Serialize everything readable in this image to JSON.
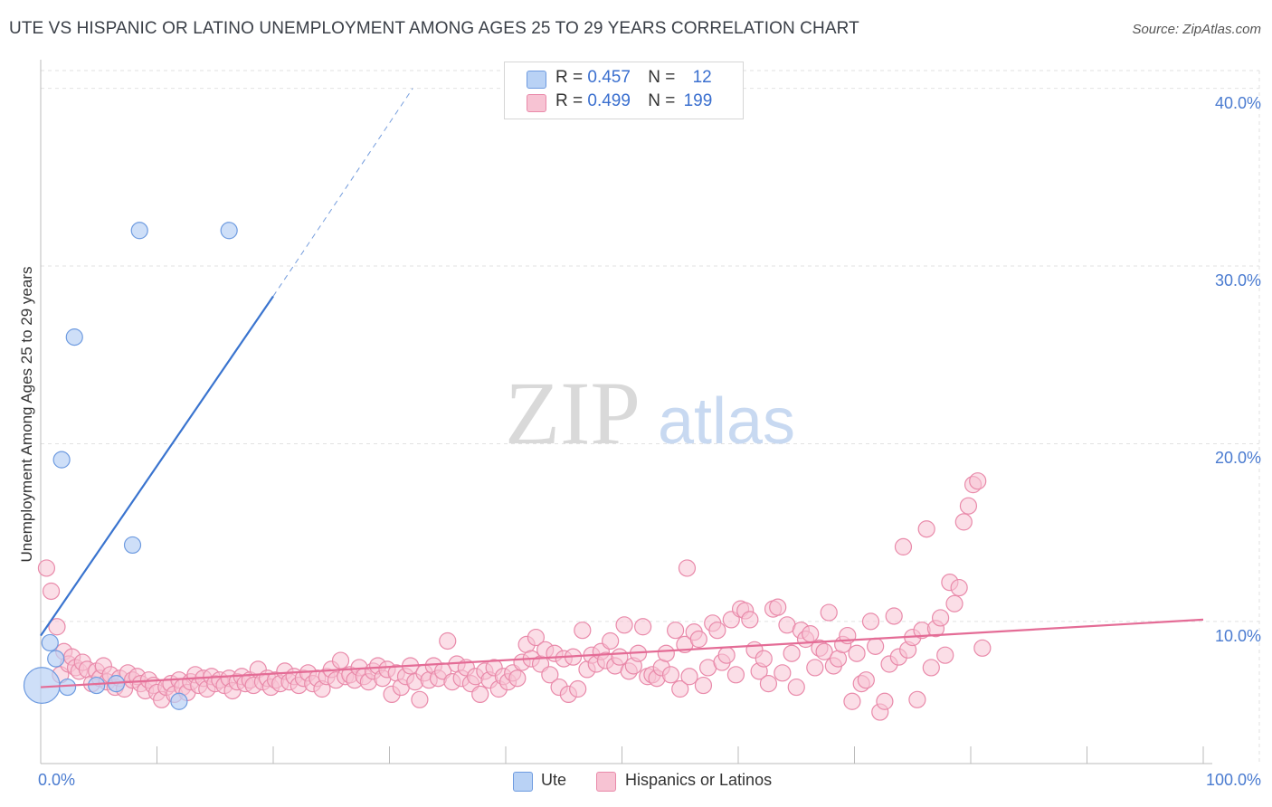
{
  "title": "UTE VS HISPANIC OR LATINO UNEMPLOYMENT AMONG AGES 25 TO 29 YEARS CORRELATION CHART",
  "source": "Source: ZipAtlas.com",
  "watermark": {
    "zip": "ZIP",
    "atlas": "atlas"
  },
  "legend": {
    "rows": [
      {
        "r_label": "R =",
        "r_value": "0.457",
        "n_label": "N =",
        "n_value": "12"
      },
      {
        "r_label": "R =",
        "r_value": "0.499",
        "n_label": "N =",
        "n_value": "199"
      }
    ]
  },
  "bottom_legend": {
    "ute": "Ute",
    "hispanic": "Hispanics or Latinos"
  },
  "colors": {
    "ute_fill": "#b9d2f5",
    "ute_stroke": "#6e9be0",
    "ute_line": "#3a74cf",
    "hisp_fill": "#f7c3d3",
    "hisp_stroke": "#e98aaa",
    "hisp_line": "#e46c96",
    "tick_text": "#4a7bd0",
    "grid": "#e2e2e2"
  },
  "chart_data": {
    "type": "scatter",
    "title": "UTE VS HISPANIC OR LATINO UNEMPLOYMENT AMONG AGES 25 TO 29 YEARS CORRELATION CHART",
    "xlabel": "",
    "ylabel": "Unemployment Among Ages 25 to 29 years",
    "xlim": [
      0,
      100
    ],
    "ylim": [
      2,
      41
    ],
    "x_tick_labels": [
      {
        "value": 0,
        "label": "0.0%"
      },
      {
        "value": 100,
        "label": "100.0%"
      }
    ],
    "y_tick_labels": [
      {
        "value": 10,
        "label": "10.0%"
      },
      {
        "value": 20,
        "label": "20.0%"
      },
      {
        "value": 30,
        "label": "30.0%"
      },
      {
        "value": 40,
        "label": "40.0%"
      }
    ],
    "x_minor_ticks": [
      0,
      10,
      20,
      30,
      40,
      50,
      60,
      70,
      80,
      90,
      100
    ],
    "series": [
      {
        "name": "Ute",
        "r": 0.457,
        "n": 12,
        "points": [
          [
            0.1,
            6.4,
            2.2
          ],
          [
            0.8,
            8.8,
            1
          ],
          [
            1.3,
            7.9,
            1
          ],
          [
            1.8,
            19.1,
            1
          ],
          [
            2.3,
            6.3,
            1
          ],
          [
            2.9,
            26.0,
            1
          ],
          [
            4.8,
            6.4,
            1
          ],
          [
            7.9,
            14.3,
            1
          ],
          [
            8.5,
            32.0,
            1
          ],
          [
            11.9,
            5.5,
            1
          ],
          [
            16.2,
            32.0,
            1
          ],
          [
            6.5,
            6.5,
            1
          ]
        ],
        "trend": {
          "x0": 0,
          "y0": 9.2,
          "x1": 20,
          "y1": 28.3
        },
        "trend_dashed": {
          "x0": 20,
          "y0": 28.3,
          "x1": 32,
          "y1": 40.0
        }
      },
      {
        "name": "Hispanics or Latinos",
        "r": 0.499,
        "n": 199,
        "points": [
          [
            0.5,
            13.0
          ],
          [
            0.9,
            11.7
          ],
          [
            1.4,
            9.7
          ],
          [
            1.7,
            7.0
          ],
          [
            2.0,
            8.3
          ],
          [
            2.4,
            7.6
          ],
          [
            2.7,
            8.0
          ],
          [
            3.0,
            7.4
          ],
          [
            3.3,
            7.2
          ],
          [
            3.6,
            7.7
          ],
          [
            4.0,
            7.3
          ],
          [
            4.4,
            6.5
          ],
          [
            4.8,
            7.2
          ],
          [
            5.1,
            6.8
          ],
          [
            5.4,
            7.5
          ],
          [
            5.7,
            6.6
          ],
          [
            6.0,
            7.0
          ],
          [
            6.4,
            6.3
          ],
          [
            6.8,
            6.8
          ],
          [
            7.2,
            6.2
          ],
          [
            7.5,
            7.1
          ],
          [
            7.9,
            6.7
          ],
          [
            8.3,
            6.9
          ],
          [
            8.6,
            6.5
          ],
          [
            9.0,
            6.1
          ],
          [
            9.3,
            6.7
          ],
          [
            9.7,
            6.4
          ],
          [
            10.0,
            6.0
          ],
          [
            10.4,
            5.6
          ],
          [
            10.8,
            6.3
          ],
          [
            11.2,
            6.5
          ],
          [
            11.5,
            5.9
          ],
          [
            11.9,
            6.7
          ],
          [
            12.2,
            6.3
          ],
          [
            12.6,
            6.0
          ],
          [
            12.9,
            6.6
          ],
          [
            13.3,
            7.0
          ],
          [
            13.6,
            6.4
          ],
          [
            14.0,
            6.8
          ],
          [
            14.3,
            6.2
          ],
          [
            14.7,
            6.9
          ],
          [
            15.0,
            6.5
          ],
          [
            15.4,
            6.7
          ],
          [
            15.8,
            6.4
          ],
          [
            16.2,
            6.8
          ],
          [
            16.5,
            6.1
          ],
          [
            16.9,
            6.6
          ],
          [
            17.3,
            6.9
          ],
          [
            17.6,
            6.5
          ],
          [
            18.0,
            6.7
          ],
          [
            18.3,
            6.4
          ],
          [
            18.7,
            7.3
          ],
          [
            19.1,
            6.6
          ],
          [
            19.5,
            6.8
          ],
          [
            19.8,
            6.3
          ],
          [
            20.2,
            6.7
          ],
          [
            20.6,
            6.5
          ],
          [
            21.0,
            7.2
          ],
          [
            21.4,
            6.6
          ],
          [
            21.8,
            6.9
          ],
          [
            22.2,
            6.4
          ],
          [
            22.6,
            6.8
          ],
          [
            23.0,
            7.1
          ],
          [
            23.4,
            6.5
          ],
          [
            23.8,
            6.8
          ],
          [
            24.2,
            6.2
          ],
          [
            24.6,
            6.9
          ],
          [
            25.0,
            7.3
          ],
          [
            25.4,
            6.7
          ],
          [
            25.8,
            7.8
          ],
          [
            26.2,
            6.9
          ],
          [
            26.6,
            7.0
          ],
          [
            27.0,
            6.7
          ],
          [
            27.4,
            7.4
          ],
          [
            27.8,
            6.9
          ],
          [
            28.2,
            6.6
          ],
          [
            28.6,
            7.2
          ],
          [
            29.0,
            7.5
          ],
          [
            29.4,
            6.8
          ],
          [
            29.8,
            7.3
          ],
          [
            30.2,
            5.9
          ],
          [
            30.6,
            7.1
          ],
          [
            31.0,
            6.3
          ],
          [
            31.4,
            6.9
          ],
          [
            31.8,
            7.5
          ],
          [
            32.2,
            6.6
          ],
          [
            32.6,
            5.6
          ],
          [
            33.0,
            7.1
          ],
          [
            33.4,
            6.7
          ],
          [
            33.8,
            7.5
          ],
          [
            34.2,
            6.8
          ],
          [
            34.6,
            7.2
          ],
          [
            35.0,
            8.9
          ],
          [
            35.4,
            6.6
          ],
          [
            35.8,
            7.6
          ],
          [
            36.2,
            6.8
          ],
          [
            36.6,
            7.4
          ],
          [
            37.0,
            6.5
          ],
          [
            37.4,
            6.9
          ],
          [
            37.8,
            5.9
          ],
          [
            38.2,
            7.2
          ],
          [
            38.6,
            6.7
          ],
          [
            39.0,
            7.4
          ],
          [
            39.4,
            6.2
          ],
          [
            39.8,
            6.9
          ],
          [
            40.2,
            6.6
          ],
          [
            40.6,
            7.1
          ],
          [
            41.0,
            6.8
          ],
          [
            41.4,
            7.7
          ],
          [
            41.8,
            8.7
          ],
          [
            42.2,
            7.9
          ],
          [
            42.6,
            9.1
          ],
          [
            43.0,
            7.6
          ],
          [
            43.4,
            8.4
          ],
          [
            43.8,
            7.0
          ],
          [
            44.2,
            8.2
          ],
          [
            44.6,
            6.3
          ],
          [
            45.0,
            7.9
          ],
          [
            45.4,
            5.9
          ],
          [
            45.8,
            8.0
          ],
          [
            46.2,
            6.2
          ],
          [
            46.6,
            9.5
          ],
          [
            47.0,
            7.3
          ],
          [
            47.4,
            8.1
          ],
          [
            47.8,
            7.6
          ],
          [
            48.2,
            8.3
          ],
          [
            48.6,
            7.8
          ],
          [
            49.0,
            8.9
          ],
          [
            49.4,
            7.5
          ],
          [
            49.8,
            8.0
          ],
          [
            50.2,
            9.8
          ],
          [
            50.6,
            7.2
          ],
          [
            51.0,
            7.5
          ],
          [
            51.4,
            8.2
          ],
          [
            51.8,
            9.7
          ],
          [
            52.2,
            6.9
          ],
          [
            52.6,
            7.0
          ],
          [
            53.0,
            6.8
          ],
          [
            53.4,
            7.4
          ],
          [
            53.8,
            8.2
          ],
          [
            54.2,
            7.0
          ],
          [
            54.6,
            9.5
          ],
          [
            55.0,
            6.2
          ],
          [
            55.4,
            8.7
          ],
          [
            55.8,
            6.9
          ],
          [
            56.2,
            9.4
          ],
          [
            56.6,
            9.0
          ],
          [
            57.0,
            6.4
          ],
          [
            57.4,
            7.4
          ],
          [
            57.8,
            9.9
          ],
          [
            58.2,
            9.5
          ],
          [
            58.6,
            7.7
          ],
          [
            59.0,
            8.1
          ],
          [
            59.4,
            10.1
          ],
          [
            59.8,
            7.0
          ],
          [
            60.2,
            10.7
          ],
          [
            60.6,
            10.6
          ],
          [
            61.0,
            10.1
          ],
          [
            61.4,
            8.4
          ],
          [
            61.8,
            7.2
          ],
          [
            62.2,
            7.9
          ],
          [
            62.6,
            6.5
          ],
          [
            63.0,
            10.7
          ],
          [
            63.4,
            10.8
          ],
          [
            63.8,
            7.1
          ],
          [
            64.2,
            9.8
          ],
          [
            64.6,
            8.2
          ],
          [
            65.0,
            6.3
          ],
          [
            65.4,
            9.5
          ],
          [
            65.8,
            9.0
          ],
          [
            66.2,
            9.3
          ],
          [
            66.6,
            7.4
          ],
          [
            67.0,
            8.5
          ],
          [
            67.4,
            8.3
          ],
          [
            67.8,
            10.5
          ],
          [
            68.2,
            7.5
          ],
          [
            68.6,
            7.9
          ],
          [
            69.0,
            8.7
          ],
          [
            69.4,
            9.2
          ],
          [
            69.8,
            5.5
          ],
          [
            70.2,
            8.2
          ],
          [
            70.6,
            6.5
          ],
          [
            71.0,
            6.7
          ],
          [
            71.4,
            10.0
          ],
          [
            71.8,
            8.6
          ],
          [
            72.2,
            4.9
          ],
          [
            72.6,
            5.5
          ],
          [
            73.0,
            7.6
          ],
          [
            73.4,
            10.3
          ],
          [
            73.8,
            8.0
          ],
          [
            74.2,
            14.2
          ],
          [
            74.6,
            8.4
          ],
          [
            75.0,
            9.1
          ],
          [
            75.4,
            5.6
          ],
          [
            75.8,
            9.5
          ],
          [
            76.2,
            15.2
          ],
          [
            76.6,
            7.4
          ],
          [
            77.0,
            9.6
          ],
          [
            77.4,
            10.2
          ],
          [
            77.8,
            8.1
          ],
          [
            78.2,
            12.2
          ],
          [
            78.6,
            11.0
          ],
          [
            79.0,
            11.9
          ],
          [
            79.4,
            15.6
          ],
          [
            79.8,
            16.5
          ],
          [
            80.2,
            17.7
          ],
          [
            80.6,
            17.9
          ],
          [
            81.0,
            8.5
          ],
          [
            55.6,
            13.0
          ]
        ],
        "trend": {
          "x0": 0,
          "y0": 6.3,
          "x1": 100,
          "y1": 10.1
        }
      }
    ]
  }
}
